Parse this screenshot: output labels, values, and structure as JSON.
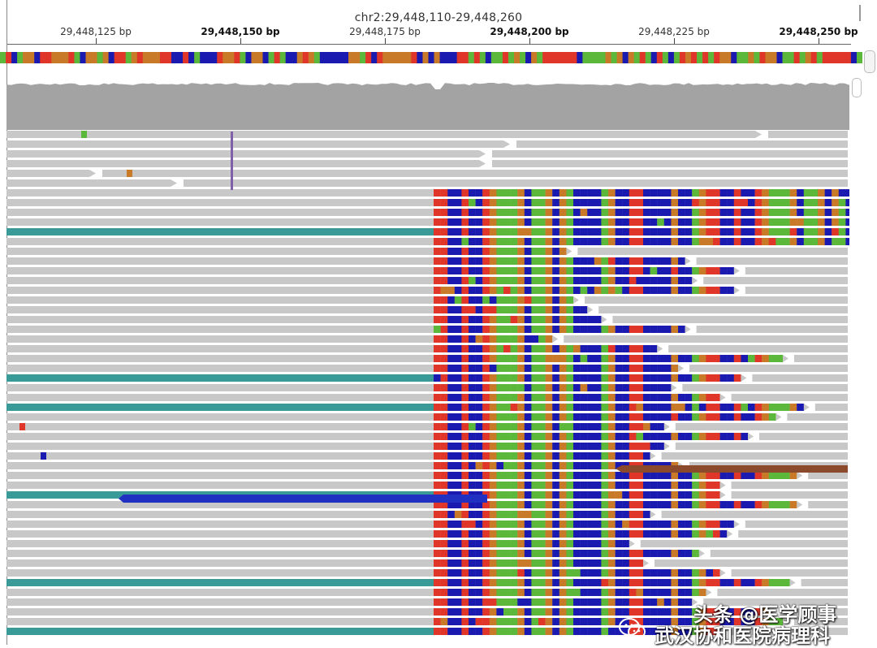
{
  "header": {
    "locus": "chr2:29,448,110-29,448,260",
    "ticks": [
      {
        "label": "29,448,125 bp",
        "major": false
      },
      {
        "label": "29,448,150 bp",
        "major": true
      },
      {
        "label": "29,448,175 bp",
        "major": false
      },
      {
        "label": "29,448,200 bp",
        "major": true
      },
      {
        "label": "29,448,225 bp",
        "major": false
      },
      {
        "label": "29,448,250 bp",
        "major": true
      }
    ]
  },
  "colors": {
    "A": "#5cb83a",
    "C": "#1a1ab0",
    "G": "#c87a28",
    "T": "#e0362a",
    "read": "#c8c8c8",
    "coverage": "#a3a3a3",
    "teal": "#3a9a98",
    "blue_read": "#2030c0",
    "brown_read": "#8b4a2b",
    "insertion": "#8060a8"
  },
  "watermark": {
    "line1": "头条 @医学顾事",
    "line2": "武汉协和医院病理科",
    "icon": "wechat-icon"
  }
}
